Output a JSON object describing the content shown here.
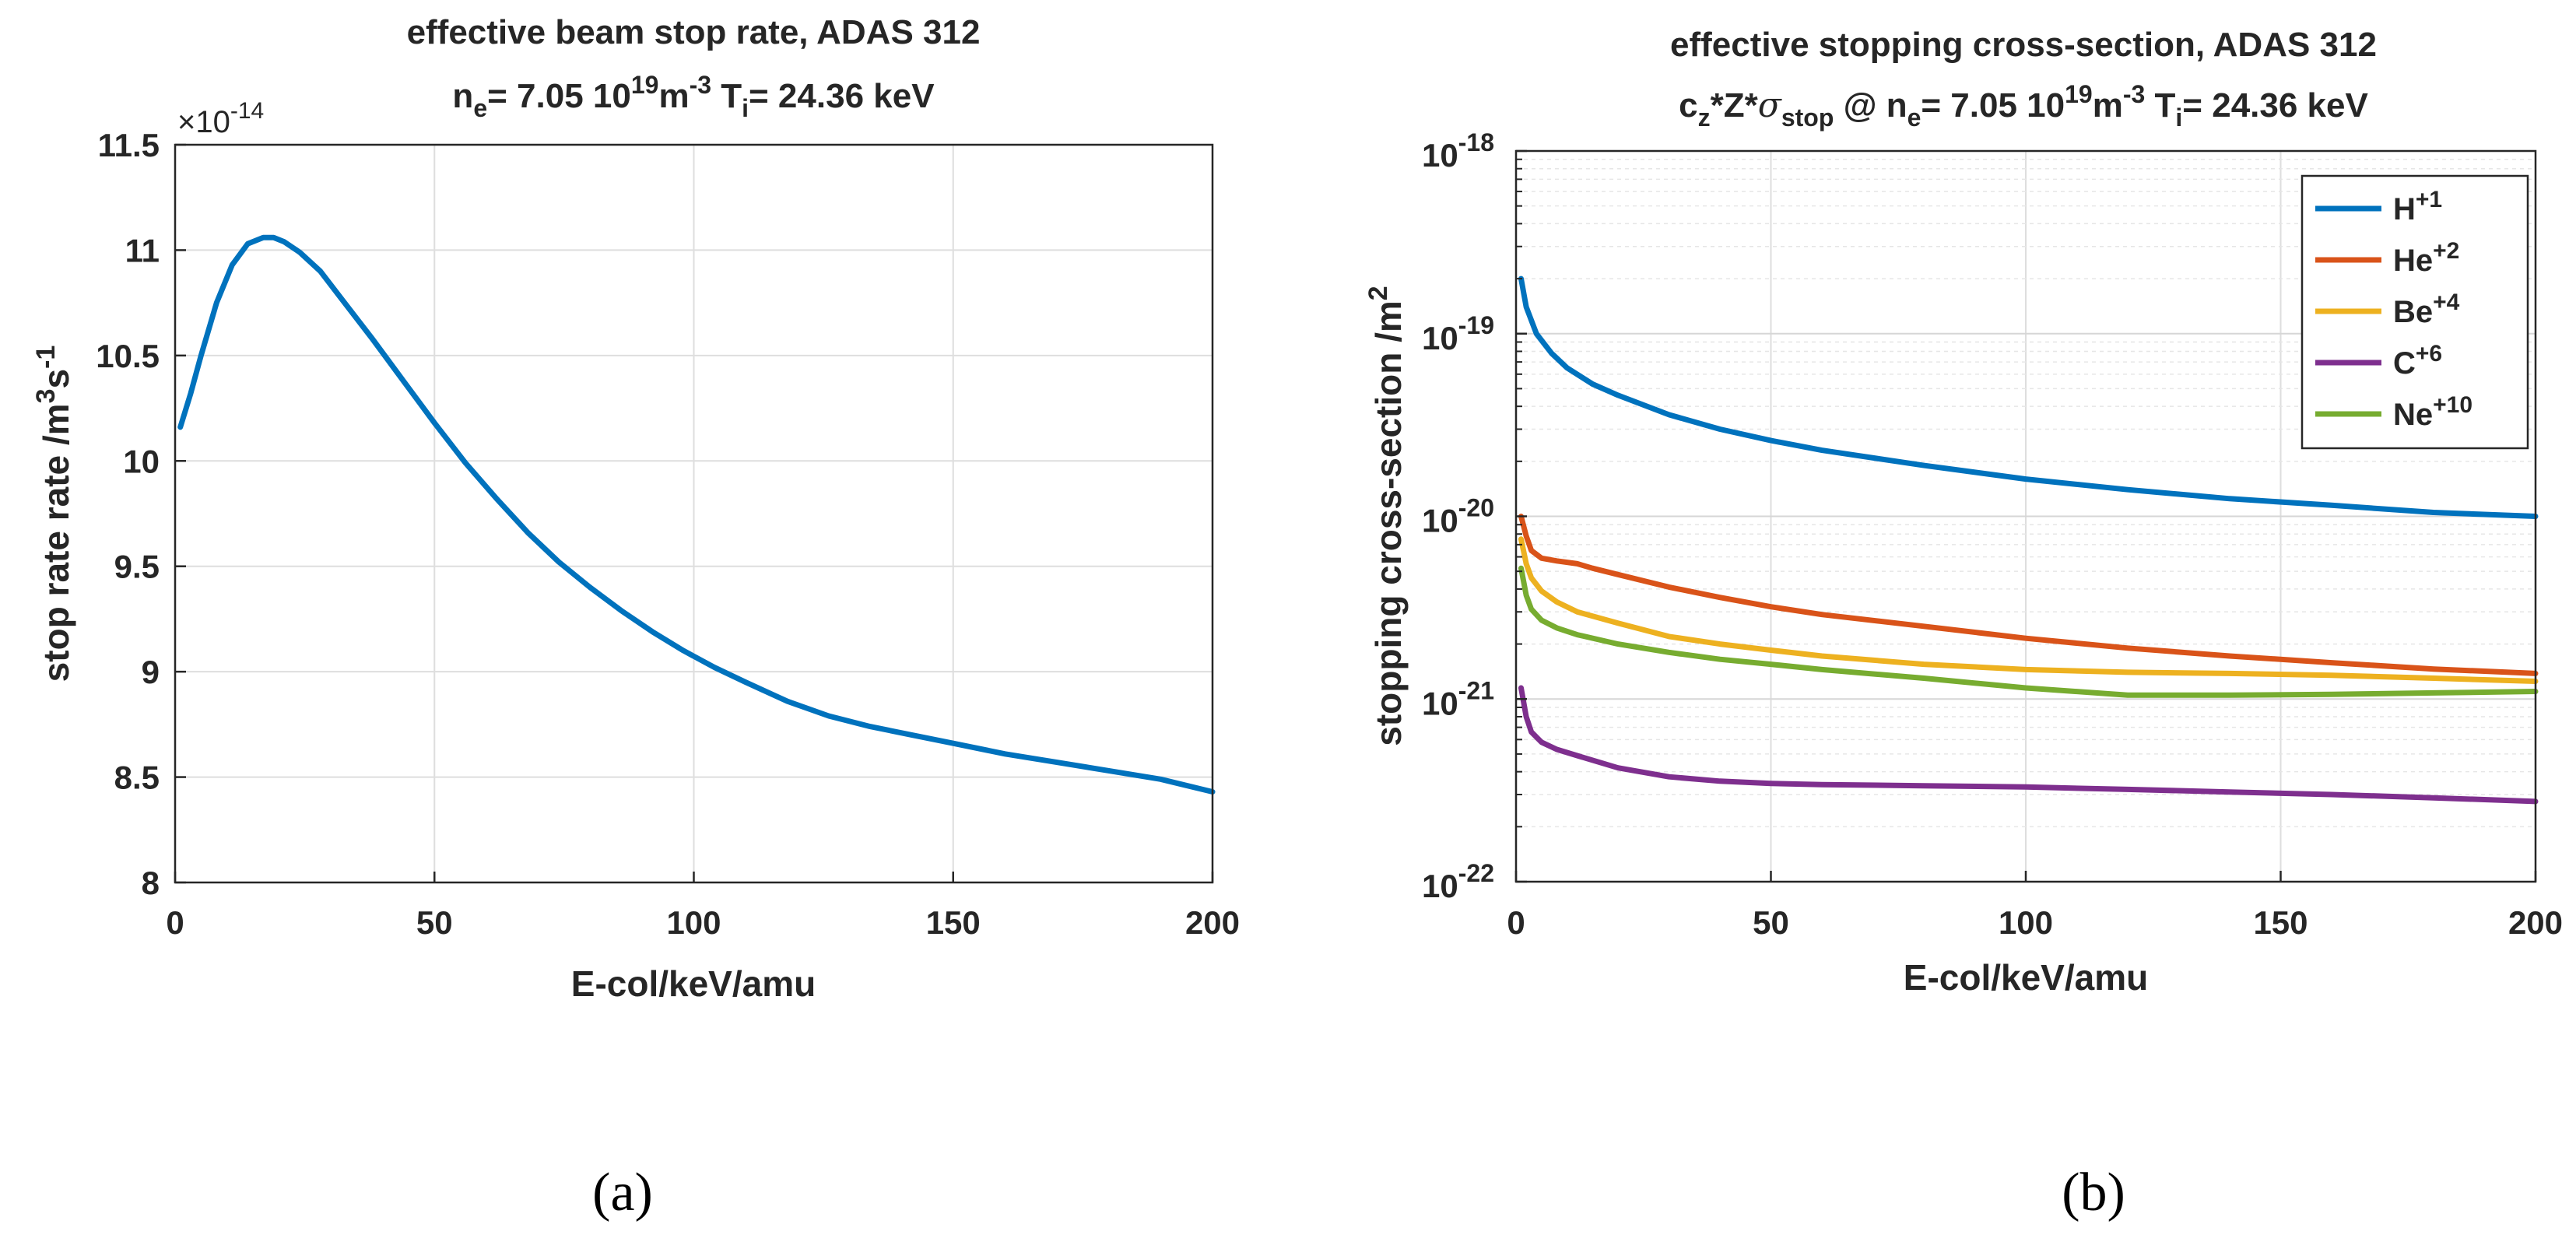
{
  "chart_data": [
    {
      "type": "line",
      "panel": "a",
      "caption": "(a)",
      "title_line1": "effective beam stop rate, ADAS 312",
      "title_line2": {
        "n": "n",
        "n_sub": "e",
        "eq": "= 7.05 10",
        "exp": "19",
        "unit": "m",
        "unit_exp": "-3",
        "t": " T",
        "t_sub": "i",
        "rest": "= 24.36 keV"
      },
      "xlabel": "E-col/keV/amu",
      "ylabel": {
        "base": "stop rate rate /m",
        "exp1": "3",
        "mid": "s",
        "exp2": "-1"
      },
      "yscale_label": {
        "base": "×10",
        "exp": "-14"
      },
      "xlim": [
        0,
        200
      ],
      "ylim": [
        8,
        11.5
      ],
      "xticks": [
        "0",
        "50",
        "100",
        "150",
        "200"
      ],
      "yticks": [
        "8",
        "8.5",
        "9",
        "9.5",
        "10",
        "10.5",
        "11",
        "11.5"
      ],
      "grid": true,
      "series": [
        {
          "name": "stop rate",
          "color": "#0072BD",
          "x": [
            1,
            3,
            5,
            8,
            11,
            14,
            17,
            19,
            21,
            24,
            28,
            33,
            38,
            44,
            50,
            56,
            62,
            68,
            74,
            80,
            86,
            92,
            98,
            104,
            110,
            118,
            126,
            134,
            142,
            150,
            160,
            170,
            180,
            190,
            200
          ],
          "y": [
            10.16,
            10.32,
            10.5,
            10.75,
            10.93,
            11.03,
            11.06,
            11.06,
            11.04,
            10.99,
            10.9,
            10.74,
            10.58,
            10.38,
            10.18,
            9.99,
            9.82,
            9.66,
            9.52,
            9.4,
            9.29,
            9.19,
            9.1,
            9.02,
            8.95,
            8.86,
            8.79,
            8.74,
            8.7,
            8.66,
            8.61,
            8.57,
            8.53,
            8.49,
            8.43
          ]
        }
      ]
    },
    {
      "type": "line",
      "panel": "b",
      "caption": "(b)",
      "title_line1": "effective stopping cross-section, ADAS 312",
      "title_line2": {
        "c": "c",
        "c_sub": "z",
        "star": "*Z*",
        "sigma": "σ",
        "sigma_sub": "stop",
        "at": " @ n",
        "n_sub": "e",
        "eq": "= 7.05 10",
        "exp": "19",
        "unit": "m",
        "unit_exp": "-3",
        "t": " T",
        "t_sub": "i",
        "rest": "= 24.36 keV"
      },
      "xlabel": "E-col/keV/amu",
      "ylabel": {
        "base": "stopping cross-section /m",
        "exp": "2"
      },
      "yscale": "log",
      "xlim": [
        0,
        200
      ],
      "ylim": [
        1e-22,
        1e-18
      ],
      "xticks": [
        "0",
        "50",
        "100",
        "150",
        "200"
      ],
      "yticks": [
        {
          "base": "10",
          "exp": "-22"
        },
        {
          "base": "10",
          "exp": "-21"
        },
        {
          "base": "10",
          "exp": "-20"
        },
        {
          "base": "10",
          "exp": "-19"
        },
        {
          "base": "10",
          "exp": "-18"
        }
      ],
      "grid": true,
      "legend_position": "top-right",
      "series": [
        {
          "name": "H",
          "name_sup": "+1",
          "color": "#0072BD",
          "x": [
            1,
            2,
            4,
            7,
            10,
            15,
            20,
            30,
            40,
            50,
            60,
            80,
            100,
            120,
            140,
            160,
            180,
            200
          ],
          "y": [
            2e-19,
            1.4e-19,
            1e-19,
            7.8e-20,
            6.5e-20,
            5.3e-20,
            4.6e-20,
            3.6e-20,
            3e-20,
            2.6e-20,
            2.3e-20,
            1.9e-20,
            1.6e-20,
            1.4e-20,
            1.25e-20,
            1.15e-20,
            1.05e-20,
            1e-20
          ]
        },
        {
          "name": "He",
          "name_sup": "+2",
          "color": "#D95319",
          "x": [
            1,
            2,
            3,
            5,
            8,
            12,
            15,
            20,
            30,
            40,
            50,
            60,
            80,
            100,
            120,
            140,
            160,
            180,
            200
          ],
          "y": [
            1e-20,
            7.8e-21,
            6.5e-21,
            5.9e-21,
            5.7e-21,
            5.5e-21,
            5.2e-21,
            4.8e-21,
            4.1e-21,
            3.6e-21,
            3.2e-21,
            2.9e-21,
            2.5e-21,
            2.15e-21,
            1.9e-21,
            1.72e-21,
            1.58e-21,
            1.46e-21,
            1.38e-21
          ]
        },
        {
          "name": "Be",
          "name_sup": "+4",
          "color": "#EDB120",
          "x": [
            1,
            2,
            3,
            5,
            8,
            12,
            20,
            30,
            40,
            50,
            60,
            80,
            100,
            120,
            140,
            160,
            180,
            200
          ],
          "y": [
            7.5e-21,
            5.5e-21,
            4.6e-21,
            3.9e-21,
            3.4e-21,
            3e-21,
            2.6e-21,
            2.2e-21,
            2e-21,
            1.85e-21,
            1.72e-21,
            1.55e-21,
            1.45e-21,
            1.4e-21,
            1.38e-21,
            1.35e-21,
            1.3e-21,
            1.25e-21
          ]
        },
        {
          "name": "C",
          "name_sup": "+6",
          "color": "#7E2F8E",
          "x": [
            1,
            2,
            3,
            5,
            8,
            12,
            20,
            30,
            40,
            50,
            60,
            80,
            100,
            120,
            140,
            160,
            180,
            200
          ],
          "y": [
            1.15e-21,
            8e-22,
            6.6e-22,
            5.8e-22,
            5.3e-22,
            4.9e-22,
            4.2e-22,
            3.75e-22,
            3.55e-22,
            3.45e-22,
            3.4e-22,
            3.35e-22,
            3.3e-22,
            3.2e-22,
            3.1e-22,
            3e-22,
            2.88e-22,
            2.75e-22
          ]
        },
        {
          "name": "Ne",
          "name_sup": "+10",
          "color": "#77AC30",
          "x": [
            1,
            2,
            3,
            5,
            8,
            12,
            20,
            30,
            40,
            50,
            60,
            80,
            100,
            120,
            140,
            160,
            180,
            200
          ],
          "y": [
            5.2e-21,
            3.7e-21,
            3.1e-21,
            2.7e-21,
            2.45e-21,
            2.25e-21,
            2e-21,
            1.8e-21,
            1.65e-21,
            1.55e-21,
            1.45e-21,
            1.3e-21,
            1.15e-21,
            1.05e-21,
            1.05e-21,
            1.06e-21,
            1.08e-21,
            1.1e-21
          ]
        }
      ]
    }
  ]
}
